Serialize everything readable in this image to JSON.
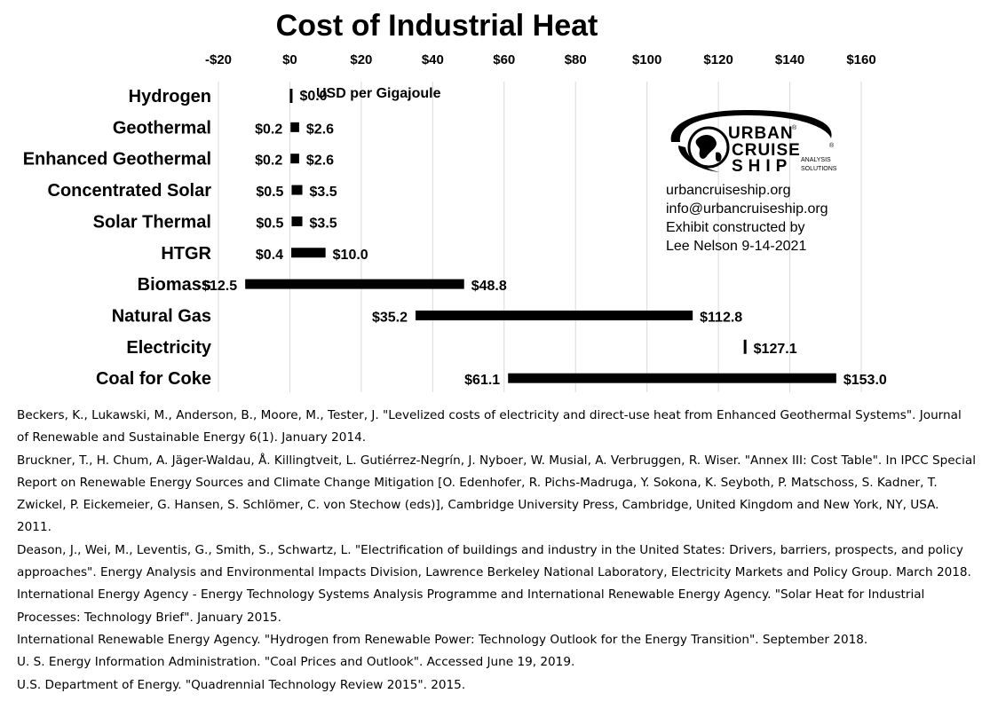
{
  "chart_data": {
    "type": "bar",
    "title": "Cost of Industrial Heat",
    "unit_label": "USD per Gigajoule",
    "xlim": [
      -20,
      160
    ],
    "x_ticks": [
      -20,
      0,
      20,
      40,
      60,
      80,
      100,
      120,
      140,
      160
    ],
    "x_tick_labels": [
      "-$20",
      "$0",
      "$20",
      "$40",
      "$60",
      "$80",
      "$100",
      "$120",
      "$140",
      "$160"
    ],
    "grid": true,
    "categories": [
      "Hydrogen",
      "Geothermal",
      "Enhanced Geothermal",
      "Concentrated Solar",
      "Solar Thermal",
      "HTGR",
      "Biomass",
      "Natural Gas",
      "Electricity",
      "Coal for Coke"
    ],
    "low": [
      0.0,
      0.2,
      0.2,
      0.5,
      0.5,
      0.4,
      -12.5,
      35.2,
      127.1,
      61.1
    ],
    "high": [
      0.0,
      2.6,
      2.6,
      3.5,
      3.5,
      10.0,
      48.8,
      112.8,
      127.1,
      153.0
    ],
    "low_labels": [
      "",
      "$0.2",
      "$0.2",
      "$0.5",
      "$0.5",
      "$0.4",
      "-$12.5",
      "$35.2",
      "",
      "$61.1"
    ],
    "high_labels": [
      "$0.0",
      "$2.6",
      "$2.6",
      "$3.5",
      "$3.5",
      "$10.0",
      "$48.8",
      "$112.8",
      "$127.1",
      "$153.0"
    ]
  },
  "logo": {
    "line1": "URBAN",
    "line2": "CRUISE",
    "line3": "SHIP",
    "tagline1": "ANALYSIS",
    "tagline2": "SOLUTIONS",
    "reg_mark": "®",
    "colors": {
      "ink": "#000000"
    }
  },
  "contact": {
    "website": "urbancruiseship.org",
    "email": "info@urbancruiseship.org",
    "credit": "Exhibit constructed by",
    "author_date": "Lee Nelson 9-14-2021"
  },
  "references": [
    "Beckers, K., Lukawski, M., Anderson, B., Moore, M., Tester, J. \"Levelized costs of electricity and direct-use heat from Enhanced Geothermal Systems\". Journal of Renewable and Sustainable Energy 6(1). January 2014.",
    "Bruckner, T., H. Chum, A. Jäger-Waldau, Å. Killingtveit, L. Gutiérrez-Negrín, J. Nyboer, W. Musial, A. Verbruggen, R. Wiser. \"Annex III: Cost Table\". In IPCC Special Report on Renewable Energy Sources and Climate Change Mitigation [O. Edenhofer, R. Pichs-Madruga, Y. Sokona, K. Seyboth, P. Matschoss, S. Kadner, T. Zwickel, P. Eickemeier, G. Hansen, S. Schlömer, C. von Stechow (eds)], Cambridge University Press, Cambridge, United Kingdom and New York, NY, USA. 2011.",
    "Deason, J., Wei, M., Leventis, G., Smith, S., Schwartz, L. \"Electrification of buildings and industry in the United States: Drivers, barriers, prospects, and policy approaches\". Energy Analysis and Environmental Impacts Division, Lawrence Berkeley National Laboratory, Electricity Markets and Policy Group. March 2018.",
    "International Energy Agency - Energy Technology Systems Analysis Programme and International Renewable Energy Agency. \"Solar Heat for Industrial Processes: Technology Brief\". January 2015.",
    "International Renewable Energy Agency. \"Hydrogen from Renewable Power: Technology Outlook for the Energy Transition\". September 2018.",
    "U. S. Energy Information Administration. \"Coal Prices and Outlook\". Accessed June 19, 2019.",
    "U.S. Department of Energy. \"Quadrennial Technology Review 2015\". 2015."
  ]
}
